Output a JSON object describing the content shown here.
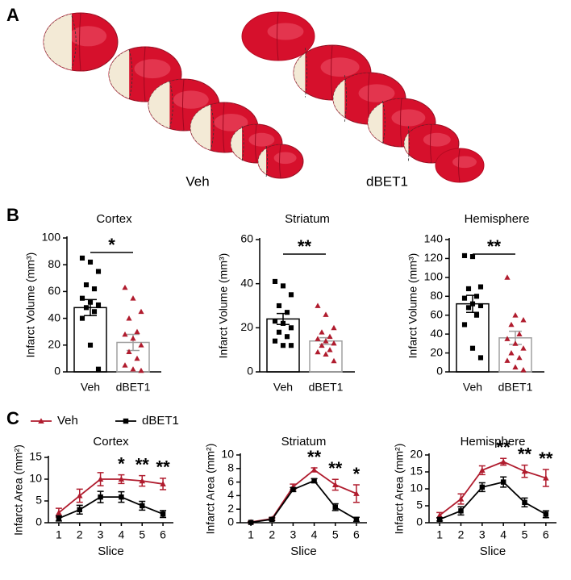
{
  "panel_labels": [
    "A",
    "B",
    "C"
  ],
  "panel_a": {
    "groups": [
      "Veh",
      "dBET1"
    ]
  },
  "chart_data": [
    {
      "type": "bar",
      "title": "Cortex",
      "ylabel": "Infarct Volume (mm³)",
      "categories": [
        "Veh",
        "dBET1"
      ],
      "values": [
        48,
        22
      ],
      "errors": [
        6,
        6
      ],
      "colors": [
        "#000000",
        "#a0a0a0"
      ],
      "point_colors": [
        "#000000",
        "#b01c2e"
      ],
      "points": [
        [
          85,
          82,
          75,
          65,
          62,
          55,
          52,
          50,
          48,
          45,
          40,
          20,
          2
        ],
        [
          63,
          55,
          45,
          40,
          30,
          28,
          25,
          20,
          15,
          10,
          5,
          2,
          1
        ]
      ],
      "significance": "*",
      "ylim": [
        0,
        100
      ],
      "yticks": [
        0,
        20,
        40,
        60,
        80,
        100
      ]
    },
    {
      "type": "bar",
      "title": "Striatum",
      "ylabel": "Infarct Volume (mm³)",
      "categories": [
        "Veh",
        "dBET1"
      ],
      "values": [
        24,
        14
      ],
      "errors": [
        2.5,
        1.5
      ],
      "colors": [
        "#000000",
        "#a0a0a0"
      ],
      "point_colors": [
        "#000000",
        "#b01c2e"
      ],
      "points": [
        [
          41,
          39,
          35,
          30,
          27,
          23,
          22,
          20,
          18,
          16,
          14,
          12,
          12
        ],
        [
          30,
          26,
          20,
          18,
          16,
          15,
          14,
          13,
          12,
          10,
          9,
          8,
          5
        ]
      ],
      "significance": "**",
      "ylim": [
        0,
        60
      ],
      "yticks": [
        0,
        20,
        40,
        60
      ]
    },
    {
      "type": "bar",
      "title": "Hemisphere",
      "ylabel": "Infarct Volume (mm³)",
      "categories": [
        "Veh",
        "dBET1"
      ],
      "values": [
        72,
        36
      ],
      "errors": [
        9,
        7
      ],
      "colors": [
        "#000000",
        "#a0a0a0"
      ],
      "point_colors": [
        "#000000",
        "#b01c2e"
      ],
      "points": [
        [
          123,
          122,
          90,
          88,
          80,
          78,
          72,
          70,
          68,
          60,
          50,
          25,
          15
        ],
        [
          100,
          60,
          55,
          50,
          40,
          35,
          30,
          25,
          20,
          15,
          12,
          5,
          2
        ]
      ],
      "significance": "**",
      "ylim": [
        0,
        140
      ],
      "yticks": [
        0,
        20,
        40,
        60,
        80,
        100,
        120,
        140
      ]
    },
    {
      "type": "line",
      "title": "Cortex",
      "xlabel": "Slice",
      "ylabel": "Infarct Area (mm²)",
      "legend": "top-left",
      "x": [
        1,
        2,
        3,
        4,
        5,
        6
      ],
      "xlim": [
        0.5,
        6.5
      ],
      "xticks": [
        1,
        2,
        3,
        4,
        5,
        6
      ],
      "ylim": [
        0,
        15
      ],
      "yticks": [
        0,
        5,
        10,
        15
      ],
      "series": [
        {
          "name": "Veh",
          "color": "#b01c2e",
          "marker": "triangle",
          "values": [
            2.3,
            6.2,
            10,
            10,
            9.6,
            8.9
          ],
          "errors": [
            1,
            1.5,
            1.5,
            1,
            1.2,
            1.3
          ]
        },
        {
          "name": "dBET1",
          "color": "#000000",
          "marker": "square",
          "values": [
            1,
            3,
            5.9,
            5.9,
            3.9,
            2
          ],
          "errors": [
            0.6,
            1,
            1.3,
            1.2,
            1,
            0.8
          ]
        }
      ],
      "annotations": [
        {
          "x": 4,
          "text": "*"
        },
        {
          "x": 5,
          "text": "**"
        },
        {
          "x": 6,
          "text": "**"
        }
      ]
    },
    {
      "type": "line",
      "title": "Striatum",
      "xlabel": "Slice",
      "ylabel": "Infarct Area (mm²)",
      "x": [
        1,
        2,
        3,
        4,
        5,
        6
      ],
      "xlim": [
        0.5,
        6.5
      ],
      "xticks": [
        1,
        2,
        3,
        4,
        5,
        6
      ],
      "ylim": [
        0,
        10
      ],
      "yticks": [
        0,
        2,
        4,
        6,
        8,
        10
      ],
      "series": [
        {
          "color": "#b01c2e",
          "marker": "triangle",
          "values": [
            0.1,
            0.6,
            5.3,
            7.8,
            5.6,
            4.3
          ],
          "errors": [
            0.1,
            0.2,
            0.4,
            0.3,
            0.8,
            1.3
          ]
        },
        {
          "color": "#000000",
          "marker": "square",
          "values": [
            0.05,
            0.5,
            4.9,
            6.2,
            2.3,
            0.5
          ],
          "errors": [
            0.05,
            0.2,
            0.3,
            0.3,
            0.5,
            0.3
          ]
        }
      ],
      "annotations": [
        {
          "x": 4,
          "text": "**"
        },
        {
          "x": 5,
          "text": "**"
        },
        {
          "x": 6,
          "text": "*"
        }
      ]
    },
    {
      "type": "line",
      "title": "Hemisphere",
      "xlabel": "Slice",
      "ylabel": "Infarct Area (mm²)",
      "x": [
        1,
        2,
        3,
        4,
        5,
        6
      ],
      "xlim": [
        0.5,
        6.5
      ],
      "xticks": [
        1,
        2,
        3,
        4,
        5,
        6
      ],
      "ylim": [
        0,
        20
      ],
      "yticks": [
        0,
        5,
        10,
        15,
        20
      ],
      "series": [
        {
          "color": "#b01c2e",
          "marker": "triangle",
          "values": [
            2.2,
            7,
            15.5,
            18,
            15.2,
            13.2
          ],
          "errors": [
            0.8,
            1.5,
            1.3,
            1,
            1.8,
            2.5
          ]
        },
        {
          "color": "#000000",
          "marker": "square",
          "values": [
            1,
            3.5,
            10.5,
            12,
            6,
            2.5
          ],
          "errors": [
            0.5,
            1.2,
            1.3,
            1.5,
            1.3,
            1
          ]
        }
      ],
      "annotations": [
        {
          "x": 4,
          "text": "**"
        },
        {
          "x": 5,
          "text": "**"
        },
        {
          "x": 6,
          "text": "**"
        }
      ]
    }
  ]
}
